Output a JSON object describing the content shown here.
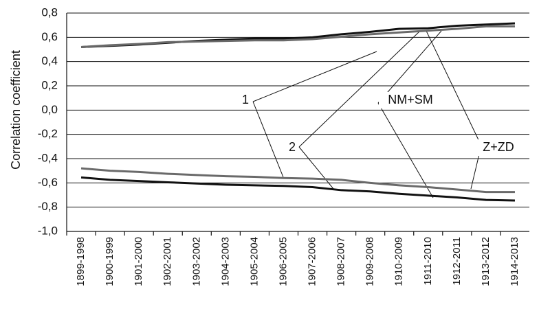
{
  "chart_data": {
    "type": "line",
    "y_label": "Correlation coefficient",
    "categories": [
      "1899-1998",
      "1900-1999",
      "1901-2000",
      "1902-2001",
      "1903-2002",
      "1904-2003",
      "1905-2004",
      "1906-2005",
      "1907-2006",
      "1908-2007",
      "1909-2008",
      "1910-2009",
      "1911-2010",
      "1912-2011",
      "1913-2012",
      "1914-2013"
    ],
    "series": [
      {
        "color": "#111111",
        "values": [
          0.52,
          0.53,
          0.54,
          0.555,
          0.57,
          0.58,
          0.59,
          0.59,
          0.6,
          0.625,
          0.645,
          0.67,
          0.675,
          0.695,
          0.705,
          0.715
        ]
      },
      {
        "color": "#6a6a6a",
        "values": [
          0.52,
          0.535,
          0.545,
          0.56,
          0.565,
          0.57,
          0.575,
          0.575,
          0.585,
          0.605,
          0.625,
          0.64,
          0.655,
          0.67,
          0.69,
          0.69
        ]
      },
      {
        "color": "#6a6a6a",
        "values": [
          -0.48,
          -0.5,
          -0.51,
          -0.525,
          -0.535,
          -0.545,
          -0.55,
          -0.56,
          -0.565,
          -0.575,
          -0.6,
          -0.62,
          -0.635,
          -0.655,
          -0.675,
          -0.675
        ]
      },
      {
        "color": "#111111",
        "values": [
          -0.555,
          -0.575,
          -0.585,
          -0.595,
          -0.605,
          -0.615,
          -0.62,
          -0.625,
          -0.635,
          -0.66,
          -0.67,
          -0.69,
          -0.705,
          -0.72,
          -0.74,
          -0.745
        ]
      }
    ],
    "ylim": [
      -1.0,
      0.8
    ],
    "yticks": [
      {
        "value": -1.0,
        "label": "-1,0"
      },
      {
        "value": -0.8,
        "label": "-0,8"
      },
      {
        "value": -0.6,
        "label": "-0,6"
      },
      {
        "value": -0.4,
        "label": "-0,4"
      },
      {
        "value": -0.2,
        "label": "-0,2"
      },
      {
        "value": 0.0,
        "label": "0,0"
      },
      {
        "value": 0.2,
        "label": "0,2"
      },
      {
        "value": 0.4,
        "label": "0,4"
      },
      {
        "value": 0.6,
        "label": "0,6"
      },
      {
        "value": 0.8,
        "label": "0,8"
      }
    ],
    "grid": true,
    "annotations": [
      "1",
      "2",
      "NM+SM",
      "Z+ZD"
    ]
  }
}
